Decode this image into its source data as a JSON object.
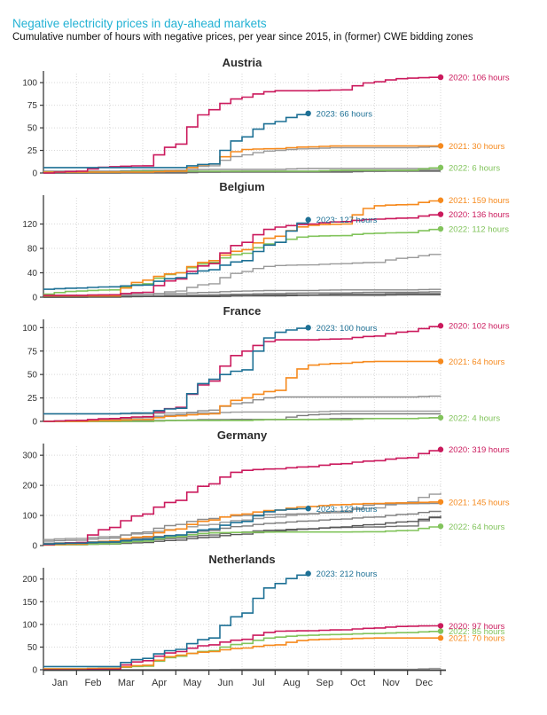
{
  "header": {
    "title": "Negative electricity prices in day-ahead markets",
    "subtitle": "Cumulative number of hours with negative prices, per year since 2015, in (former) CWE bidding zones"
  },
  "colors": {
    "title_accent": "#23b2d4",
    "panel_title": "#2b2b2b",
    "axis": "#3a3a3a",
    "grid": "#d7d7d7",
    "tick_text": "#333333",
    "2020": "#cb1a5d",
    "2021": "#f68a1e",
    "2022": "#82c45c",
    "2023": "#1d7095",
    "gray_shades": [
      "#9a9a9a",
      "#8b8b8b",
      "#7c7c7c",
      "#6d6d6d",
      "#575757"
    ]
  },
  "months": [
    "Jan",
    "Feb",
    "Mar",
    "Apr",
    "May",
    "Jun",
    "Jul",
    "Aug",
    "Sep",
    "Oct",
    "Nov",
    "Dec"
  ],
  "chart_data": [
    {
      "type": "line",
      "country": "Austria",
      "ylim": [
        0,
        110
      ],
      "yticks": [
        0,
        25,
        50,
        75,
        100
      ],
      "series": [
        {
          "name": "unlabeled-gray-1",
          "color_key": "gray",
          "shade": 1,
          "values": [
            0,
            0,
            1,
            2,
            3,
            8,
            20,
            25,
            27,
            28,
            28,
            28,
            29
          ]
        },
        {
          "name": "unlabeled-gray-2",
          "color_key": "gray",
          "shade": 2,
          "values": [
            2,
            2,
            2,
            3,
            3,
            4,
            4,
            4,
            5,
            5,
            5,
            5,
            5
          ]
        },
        {
          "name": "unlabeled-gray-3",
          "color_key": "gray",
          "shade": 3,
          "values": [
            0,
            0,
            0,
            1,
            1,
            1,
            2,
            2,
            2,
            2,
            2,
            3,
            3
          ]
        },
        {
          "name": "unlabeled-gray-4",
          "color_key": "gray",
          "shade": 4,
          "values": [
            0,
            0,
            0,
            0,
            0,
            1,
            1,
            1,
            1,
            1,
            2,
            2,
            2
          ]
        },
        {
          "name": "2022",
          "color_key": "2022",
          "values": [
            1,
            1,
            1,
            2,
            2,
            2,
            2,
            2,
            2,
            3,
            3,
            3,
            6
          ],
          "end_label": "2022: 6 hours"
        },
        {
          "name": "2021",
          "color_key": "2021",
          "values": [
            1,
            1,
            1,
            1,
            2,
            10,
            26,
            27,
            29,
            30,
            30,
            30,
            30
          ],
          "end_label": "2021: 30 hours"
        },
        {
          "name": "2020",
          "color_key": "2020",
          "values": [
            0,
            2,
            7,
            8,
            32,
            70,
            84,
            91,
            91,
            92,
            101,
            105,
            106
          ],
          "end_label": "2020: 106 hours"
        },
        {
          "name": "2023",
          "color_key": "2023",
          "values": [
            6,
            6,
            6,
            6,
            6,
            10,
            40,
            57,
            66
          ],
          "end_label": "2023: 66 hours"
        }
      ]
    },
    {
      "type": "line",
      "country": "Belgium",
      "ylim": [
        0,
        163
      ],
      "yticks": [
        0,
        40,
        80,
        120
      ],
      "series": [
        {
          "name": "unlabeled-gray-1",
          "color_key": "gray",
          "shade": 1,
          "values": [
            0,
            0,
            1,
            2,
            10,
            22,
            42,
            52,
            53,
            55,
            57,
            65,
            71
          ]
        },
        {
          "name": "unlabeled-gray-2",
          "color_key": "gray",
          "shade": 2,
          "values": [
            3,
            3,
            4,
            5,
            6,
            8,
            10,
            11,
            11,
            12,
            12,
            12,
            13
          ]
        },
        {
          "name": "unlabeled-gray-3",
          "color_key": "gray",
          "shade": 3,
          "values": [
            1,
            1,
            2,
            2,
            3,
            4,
            5,
            6,
            7,
            7,
            8,
            8,
            9
          ]
        },
        {
          "name": "unlabeled-gray-4",
          "color_key": "gray",
          "shade": 4,
          "values": [
            0,
            0,
            1,
            1,
            2,
            2,
            3,
            4,
            4,
            5,
            5,
            6,
            6
          ]
        },
        {
          "name": "unlabeled-gray-5",
          "color_key": "gray",
          "shade": 5,
          "values": [
            0,
            0,
            0,
            1,
            1,
            1,
            2,
            2,
            3,
            3,
            3,
            4,
            4
          ]
        },
        {
          "name": "2022",
          "color_key": "2022",
          "values": [
            5,
            10,
            12,
            22,
            40,
            57,
            72,
            90,
            100,
            101,
            105,
            106,
            112
          ],
          "end_label": "2022: 112 hours"
        },
        {
          "name": "2021",
          "color_key": "2021",
          "values": [
            2,
            2,
            2,
            28,
            40,
            60,
            78,
            100,
            118,
            120,
            150,
            152,
            159
          ],
          "end_label": "2021: 159 hours"
        },
        {
          "name": "2020",
          "color_key": "2020",
          "values": [
            3,
            3,
            4,
            8,
            30,
            55,
            90,
            115,
            120,
            124,
            128,
            130,
            136
          ],
          "end_label": "2020: 136 hours"
        },
        {
          "name": "2023",
          "color_key": "2023",
          "values": [
            13,
            15,
            17,
            20,
            32,
            45,
            60,
            90,
            127
          ],
          "end_label": "2023: 127 hours"
        }
      ]
    },
    {
      "type": "line",
      "country": "France",
      "ylim": [
        0,
        106
      ],
      "yticks": [
        0,
        25,
        50,
        75,
        100
      ],
      "series": [
        {
          "name": "unlabeled-gray-1",
          "color_key": "gray",
          "shade": 1,
          "values": [
            8,
            8,
            8,
            8,
            9,
            9,
            10,
            10,
            10,
            11,
            11,
            11,
            11
          ]
        },
        {
          "name": "unlabeled-gray-2",
          "color_key": "gray",
          "shade": 2,
          "values": [
            0,
            1,
            2,
            4,
            7,
            12,
            20,
            26,
            26,
            26,
            26,
            26,
            27
          ]
        },
        {
          "name": "unlabeled-gray-3",
          "color_key": "gray",
          "shade": 3,
          "values": [
            0,
            0,
            0,
            1,
            1,
            2,
            2,
            2,
            7,
            8,
            8,
            8,
            8
          ]
        },
        {
          "name": "unlabeled-gray-4",
          "color_key": "gray",
          "shade": 4,
          "values": [
            0,
            0,
            0,
            0,
            1,
            1,
            2,
            2,
            2,
            3,
            3,
            3,
            4
          ]
        },
        {
          "name": "2022",
          "color_key": "2022",
          "values": [
            0,
            0,
            0,
            0,
            1,
            1,
            1,
            2,
            2,
            2,
            3,
            3,
            4
          ],
          "end_label": "2022: 4 hours"
        },
        {
          "name": "2021",
          "color_key": "2021",
          "values": [
            0,
            0,
            1,
            2,
            6,
            8,
            25,
            33,
            60,
            62,
            64,
            64,
            64
          ],
          "end_label": "2021: 64 hours"
        },
        {
          "name": "2020",
          "color_key": "2020",
          "values": [
            0,
            1,
            3,
            5,
            15,
            43,
            75,
            87,
            87,
            88,
            91,
            96,
            102
          ],
          "end_label": "2020: 102 hours"
        },
        {
          "name": "2023",
          "color_key": "2023",
          "values": [
            8,
            8,
            8,
            9,
            14,
            45,
            55,
            95,
            100
          ],
          "end_label": "2023: 100 hours"
        }
      ]
    },
    {
      "type": "line",
      "country": "Germany",
      "ylim": [
        0,
        330
      ],
      "yticks": [
        0,
        100,
        200,
        300
      ],
      "series": [
        {
          "name": "unlabeled-gray-1",
          "color_key": "gray",
          "shade": 1,
          "values": [
            20,
            24,
            30,
            40,
            55,
            70,
            85,
            95,
            105,
            115,
            125,
            145,
            175
          ]
        },
        {
          "name": "unlabeled-gray-2",
          "color_key": "gray",
          "shade": 2,
          "values": [
            15,
            18,
            25,
            45,
            70,
            90,
            100,
            103,
            106,
            110,
            138,
            139,
            140
          ]
        },
        {
          "name": "unlabeled-gray-3",
          "color_key": "gray",
          "shade": 3,
          "values": [
            8,
            10,
            15,
            25,
            35,
            50,
            65,
            75,
            82,
            88,
            95,
            105,
            115
          ]
        },
        {
          "name": "unlabeled-gray-4",
          "color_key": "gray",
          "shade": 4,
          "values": [
            5,
            6,
            10,
            15,
            25,
            35,
            45,
            52,
            56,
            60,
            62,
            65,
            100
          ]
        },
        {
          "name": "unlabeled-gray-5",
          "color_key": "gray",
          "shade": 5,
          "values": [
            2,
            3,
            5,
            10,
            18,
            28,
            38,
            48,
            55,
            62,
            70,
            80,
            95
          ]
        },
        {
          "name": "2022",
          "color_key": "2022",
          "values": [
            2,
            3,
            6,
            15,
            30,
            42,
            44,
            45,
            45,
            45,
            46,
            50,
            64
          ],
          "end_label": "2022: 64 hours"
        },
        {
          "name": "2021",
          "color_key": "2021",
          "values": [
            2,
            5,
            15,
            30,
            55,
            85,
            105,
            118,
            130,
            136,
            140,
            142,
            145
          ],
          "end_label": "2021: 145 hours"
        },
        {
          "name": "2020",
          "color_key": "2020",
          "values": [
            3,
            10,
            60,
            105,
            150,
            205,
            250,
            255,
            262,
            272,
            282,
            292,
            319
          ],
          "end_label": "2020: 319 hours"
        },
        {
          "name": "2023",
          "color_key": "2023",
          "values": [
            5,
            8,
            12,
            20,
            35,
            55,
            80,
            118,
            123
          ],
          "end_label": "2023: 123 hours"
        }
      ]
    },
    {
      "type": "line",
      "country": "Netherlands",
      "ylim": [
        0,
        219
      ],
      "yticks": [
        0,
        50,
        100,
        150,
        200
      ],
      "series": [
        {
          "name": "unlabeled-gray-1",
          "color_key": "gray",
          "shade": 1,
          "values": [
            0,
            0,
            0,
            0,
            0,
            0,
            1,
            1,
            1,
            1,
            1,
            1,
            3
          ]
        },
        {
          "name": "2022",
          "color_key": "2022",
          "values": [
            2,
            2,
            3,
            8,
            30,
            42,
            58,
            72,
            76,
            78,
            80,
            82,
            85
          ],
          "end_label": "2022: 85 hours"
        },
        {
          "name": "2021",
          "color_key": "2021",
          "values": [
            2,
            2,
            3,
            10,
            32,
            40,
            48,
            55,
            66,
            68,
            70,
            70,
            70
          ],
          "end_label": "2021: 70 hours"
        },
        {
          "name": "2020",
          "color_key": "2020",
          "values": [
            0,
            0,
            1,
            20,
            40,
            55,
            67,
            85,
            86,
            88,
            92,
            96,
            97
          ],
          "end_label": "2020: 97 hours"
        },
        {
          "name": "2023",
          "color_key": "2023",
          "values": [
            7,
            7,
            7,
            25,
            45,
            70,
            125,
            190,
            212
          ],
          "end_label": "2023: 212 hours"
        }
      ]
    }
  ]
}
